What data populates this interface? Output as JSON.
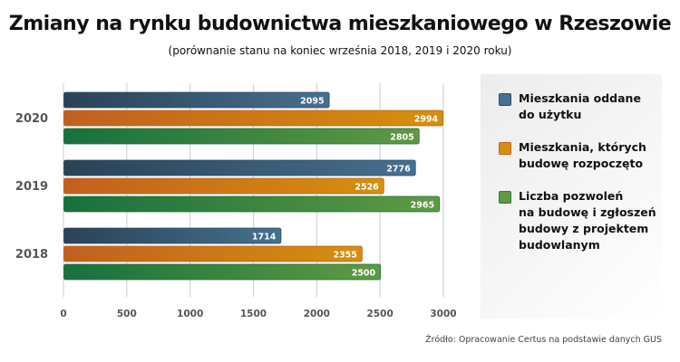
{
  "chart_data": {
    "type": "bar",
    "orientation": "horizontal",
    "title": "Zmiany na rynku budownictwa mieszkaniowego w Rzeszowie",
    "subtitle": "(porównanie stanu na koniec września 2018, 2019 i 2020 roku)",
    "categories": [
      "2020",
      "2019",
      "2018"
    ],
    "series": [
      {
        "name": "Mieszkania oddane\ndo użytku",
        "color": "#3e6684",
        "values": [
          2095,
          2776,
          1714
        ]
      },
      {
        "name": "Mieszkania, których\nbudowę rozpoczęto",
        "color": "#d2861a",
        "values": [
          2994,
          2526,
          2355
        ]
      },
      {
        "name": "Liczba pozwoleń\nna budowę i zgłoszeń\nbudowy z projektem\nbudowlanym",
        "color": "#4e9140",
        "values": [
          2805,
          2965,
          2500
        ]
      }
    ],
    "xlim": [
      0,
      3000
    ],
    "xticks": [
      "0",
      "500",
      "1000",
      "1500",
      "2000",
      "2500",
      "3000"
    ],
    "grid": true,
    "legend_position": "right",
    "source": "Źródło: Opracowanie Certus na podstawie danych GUS"
  }
}
